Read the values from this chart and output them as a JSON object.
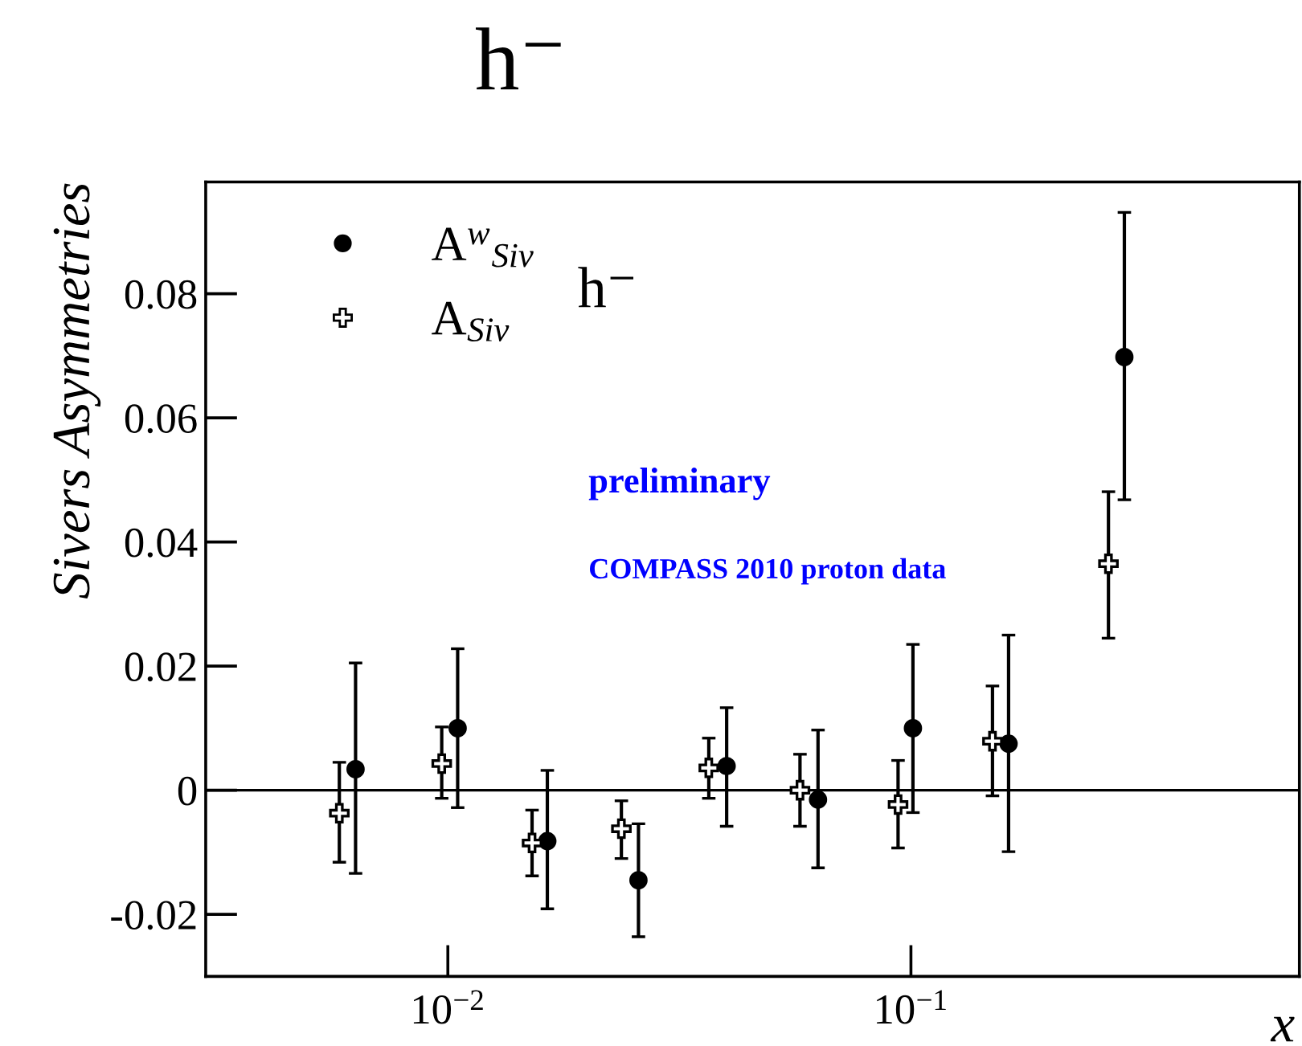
{
  "chart_data": {
    "type": "scatter",
    "title": "h⁻",
    "xlabel": "x",
    "ylabel": "Sivers Asymmetries",
    "annotations": [
      "h⁻",
      "preliminary",
      "COMPASS 2010 proton data"
    ],
    "log": "x",
    "xlim": [
      0.003,
      0.69
    ],
    "xticks": [
      {
        "value": 0.01,
        "label": "10$^{−2}$"
      },
      {
        "value": 0.1,
        "label": "10$^{−1}$"
      }
    ],
    "ylim": [
      -0.03,
      0.098
    ],
    "yticks": [
      -0.02,
      0,
      0.02,
      0.04,
      0.06,
      0.08
    ],
    "grid": false,
    "legend": "top left",
    "ref_lines": [
      {
        "axis": "y",
        "value": 0,
        "color": "#000000"
      }
    ],
    "series": [
      {
        "name": "A$^{w}$$_{Siv}$",
        "color": "#000000",
        "marker": "circle",
        "x": [
          0.00632,
          0.0105,
          0.0164,
          0.0258,
          0.04,
          0.063,
          0.101,
          0.1625,
          0.289
        ],
        "values": [
          0.0034,
          0.01,
          -0.0082,
          -0.0145,
          0.0039,
          -0.0015,
          0.01,
          0.0075,
          0.0698
        ],
        "errors": [
          [
            -0.0134,
            0.0205
          ],
          [
            -0.0028,
            0.0228
          ],
          [
            -0.0191,
            0.0032
          ],
          [
            -0.0236,
            -0.0054
          ],
          [
            -0.0058,
            0.0133
          ],
          [
            -0.0125,
            0.0097
          ],
          [
            -0.0036,
            0.0235
          ],
          [
            -0.0099,
            0.025
          ],
          [
            0.0468,
            0.0931
          ]
        ]
      },
      {
        "name": "A$_{Siv}$",
        "color": "#000000",
        "marker": "cross",
        "x": [
          0.00583,
          0.0097,
          0.0152,
          0.0237,
          0.0366,
          0.0576,
          0.0938,
          0.15,
          0.267
        ],
        "values": [
          -0.0037,
          0.0043,
          -0.0085,
          -0.0062,
          0.0036,
          0.0,
          -0.0023,
          0.0079,
          0.0365
        ],
        "errors": [
          [
            -0.0116,
            0.0045
          ],
          [
            -0.0013,
            0.0102
          ],
          [
            -0.0138,
            -0.0032
          ],
          [
            -0.011,
            -0.0017
          ],
          [
            -0.0013,
            0.0084
          ],
          [
            -0.0058,
            0.0058
          ],
          [
            -0.0093,
            0.0048
          ],
          [
            -0.0009,
            0.0168
          ],
          [
            0.0245,
            0.0481
          ]
        ]
      }
    ]
  }
}
